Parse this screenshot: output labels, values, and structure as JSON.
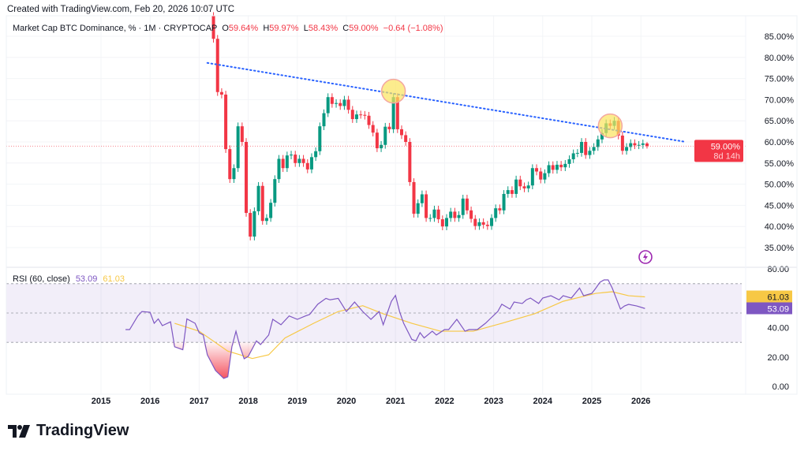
{
  "header": {
    "created": "Created with TradingView.com, Feb 20, 2026 10:07 UTC",
    "symbol": "Market Cap BTC Dominance, % · 1M · CRYPTOCAP",
    "o_label": "O",
    "o_value": "59.64%",
    "h_label": "H",
    "h_value": "59.97%",
    "l_label": "L",
    "l_value": "58.43%",
    "c_label": "C",
    "c_value": "59.00%",
    "change": "−0.64 (−1.08%)"
  },
  "rsi_legend": {
    "label": "RSI (60, close)",
    "rsi_value": "53.09",
    "ma_value": "61.03"
  },
  "badges": {
    "price": "59.00%",
    "countdown": "8d 14h",
    "ma": "61.03",
    "rsi": "53.09"
  },
  "brand": {
    "logo_text": "TradingView"
  },
  "colors": {
    "up": "#089981",
    "down": "#f23645",
    "rsi": "#7e57c2",
    "rsi_ma": "#f7c845",
    "trendline": "#2962ff",
    "highlight": "#fbe45c"
  },
  "chart_data": [
    {
      "type": "candlestick",
      "title": "Market Cap BTC Dominance, %",
      "interval": "1M",
      "start_month": "2017-04",
      "first_open": 89.8,
      "closes": [
        84.4,
        71.8,
        71.2,
        58.3,
        51.2,
        53.8,
        63.7,
        60,
        43.2,
        37.6,
        43.6,
        49.6,
        41.3,
        42,
        45.6,
        51.2,
        56,
        53.8,
        56.8,
        57,
        55,
        56,
        55,
        53.5,
        56.4,
        57.8,
        63.7,
        66.8,
        70.6,
        69,
        69.2,
        68.5,
        70,
        67.6,
        65.4,
        66.5,
        66.4,
        66.2,
        64,
        62.2,
        58.5,
        59.3,
        63.6,
        63,
        70.6,
        63,
        61.6,
        60,
        50.5,
        43,
        45.5,
        47.6,
        42,
        42,
        44,
        41.7,
        40,
        42,
        43.5,
        42,
        42.7,
        46.6,
        43.8,
        41.8,
        40.1,
        41,
        40.4,
        40.1,
        42,
        44.3,
        43.8,
        47.7,
        48.6,
        47.7,
        51.1,
        49.5,
        49,
        49.7,
        53.8,
        53,
        51.1,
        52.6,
        54.5,
        53.4,
        54.6,
        54,
        54.8,
        55.9,
        57.3,
        57.4,
        60,
        56.9,
        57.9,
        58.8,
        60.6,
        62.1,
        64.4,
        63.8,
        65,
        61.5,
        57.9,
        58.8,
        59.7,
        59.2,
        59.3,
        59.64,
        59.0
      ],
      "last_candle": {
        "open": 59.64,
        "high": 59.97,
        "low": 58.43,
        "close": 59.0
      },
      "y_ticks": [
        "85.00%",
        "80.00%",
        "75.00%",
        "70.00%",
        "65.00%",
        "60.00%",
        "55.00%",
        "50.00%",
        "45.00%",
        "40.00%",
        "35.00%"
      ],
      "ylim": [
        34,
        89
      ],
      "current_price": 59.0,
      "trendline": [
        [
          "2017-03",
          78.7
        ],
        [
          "2026-12",
          60.0
        ]
      ],
      "highlights": [
        [
          "2020-12",
          72.0
        ],
        [
          "2025-05",
          63.8
        ]
      ]
    },
    {
      "type": "line",
      "title": "RSI (60, close)",
      "y_ticks": [
        "80.00",
        "40.00",
        "20.00",
        "0.00"
      ],
      "ylim": [
        0,
        80
      ],
      "bands": [
        30,
        50,
        70
      ],
      "x_ticks": [
        "2015",
        "2016",
        "2017",
        "2018",
        "2019",
        "2020",
        "2021",
        "2022",
        "2023",
        "2024",
        "2025",
        "2026"
      ],
      "series": [
        {
          "points": [
            [
              "2015-07",
              38.7
            ],
            [
              "2015-08",
              38.7
            ],
            [
              "2015-10",
              48
            ],
            [
              "2015-11",
              51
            ],
            [
              "2016-01",
              50.5
            ],
            [
              "2016-02",
              43
            ],
            [
              "2016-03",
              46
            ],
            [
              "2016-04",
              41.4
            ],
            [
              "2016-06",
              44
            ],
            [
              "2016-07",
              27
            ],
            [
              "2016-09",
              25
            ],
            [
              "2016-10",
              46
            ],
            [
              "2016-12",
              43
            ],
            [
              "2017-01",
              36.6
            ],
            [
              "2017-02",
              35
            ],
            [
              "2017-03",
              21.5
            ],
            [
              "2017-05",
              10.8
            ],
            [
              "2017-07",
              5.4
            ],
            [
              "2017-08",
              6.5
            ],
            [
              "2017-09",
              27
            ],
            [
              "2017-10",
              37.6
            ],
            [
              "2017-11",
              27
            ],
            [
              "2017-12",
              18.8
            ],
            [
              "2018-01",
              20.4
            ],
            [
              "2018-03",
              31
            ],
            [
              "2018-04",
              28.5
            ],
            [
              "2018-06",
              35
            ],
            [
              "2018-07",
              45.7
            ],
            [
              "2018-09",
              42
            ],
            [
              "2018-11",
              48
            ],
            [
              "2019-01",
              45.7
            ],
            [
              "2019-03",
              48
            ],
            [
              "2019-04",
              49
            ],
            [
              "2019-06",
              56
            ],
            [
              "2019-08",
              60
            ],
            [
              "2019-09",
              59
            ],
            [
              "2019-11",
              60
            ],
            [
              "2020-01",
              51
            ],
            [
              "2020-03",
              57.5
            ],
            [
              "2020-05",
              51
            ],
            [
              "2020-07",
              45.7
            ],
            [
              "2020-09",
              51
            ],
            [
              "2020-10",
              42
            ],
            [
              "2020-12",
              58
            ],
            [
              "2021-01",
              62
            ],
            [
              "2021-02",
              51
            ],
            [
              "2021-03",
              43
            ],
            [
              "2021-05",
              32
            ],
            [
              "2021-06",
              31
            ],
            [
              "2021-07",
              36.6
            ],
            [
              "2021-08",
              33
            ],
            [
              "2021-10",
              37.6
            ],
            [
              "2021-11",
              35
            ],
            [
              "2022-01",
              38.7
            ],
            [
              "2022-02",
              38.7
            ],
            [
              "2022-04",
              45.7
            ],
            [
              "2022-06",
              37.6
            ],
            [
              "2022-07",
              38.7
            ],
            [
              "2022-09",
              38.7
            ],
            [
              "2022-11",
              43
            ],
            [
              "2022-12",
              45.7
            ],
            [
              "2023-02",
              51
            ],
            [
              "2023-03",
              56
            ],
            [
              "2023-05",
              52.7
            ],
            [
              "2023-06",
              57.5
            ],
            [
              "2023-08",
              56.5
            ],
            [
              "2023-09",
              59
            ],
            [
              "2023-10",
              60.2
            ],
            [
              "2023-12",
              56.5
            ],
            [
              "2024-01",
              60.2
            ],
            [
              "2024-03",
              61.8
            ],
            [
              "2024-05",
              59
            ],
            [
              "2024-06",
              61.8
            ],
            [
              "2024-08",
              60.2
            ],
            [
              "2024-10",
              67
            ],
            [
              "2024-11",
              61.8
            ],
            [
              "2025-01",
              63.4
            ],
            [
              "2025-02",
              67
            ],
            [
              "2025-03",
              71
            ],
            [
              "2025-04",
              72.6
            ],
            [
              "2025-05",
              72.6
            ],
            [
              "2025-06",
              67
            ],
            [
              "2025-08",
              52.7
            ],
            [
              "2025-09",
              54.8
            ],
            [
              "2025-10",
              55.9
            ],
            [
              "2025-12",
              54.8
            ],
            [
              "2026-02",
              53.09
            ]
          ]
        },
        {
          "points": [
            [
              "2016-07",
              43
            ],
            [
              "2017-01",
              37.6
            ],
            [
              "2017-08",
              24
            ],
            [
              "2018-02",
              19
            ],
            [
              "2018-06",
              21.5
            ],
            [
              "2018-10",
              33
            ],
            [
              "2019-05",
              43
            ],
            [
              "2019-11",
              51
            ],
            [
              "2020-05",
              55
            ],
            [
              "2020-10",
              49.5
            ],
            [
              "2021-05",
              43
            ],
            [
              "2021-12",
              37.6
            ],
            [
              "2022-08",
              37.6
            ],
            [
              "2023-03",
              43
            ],
            [
              "2023-11",
              49.5
            ],
            [
              "2024-06",
              58
            ],
            [
              "2025-02",
              63.4
            ],
            [
              "2025-06",
              64.5
            ],
            [
              "2025-10",
              61.8
            ],
            [
              "2026-02",
              61.03
            ]
          ]
        }
      ]
    }
  ]
}
